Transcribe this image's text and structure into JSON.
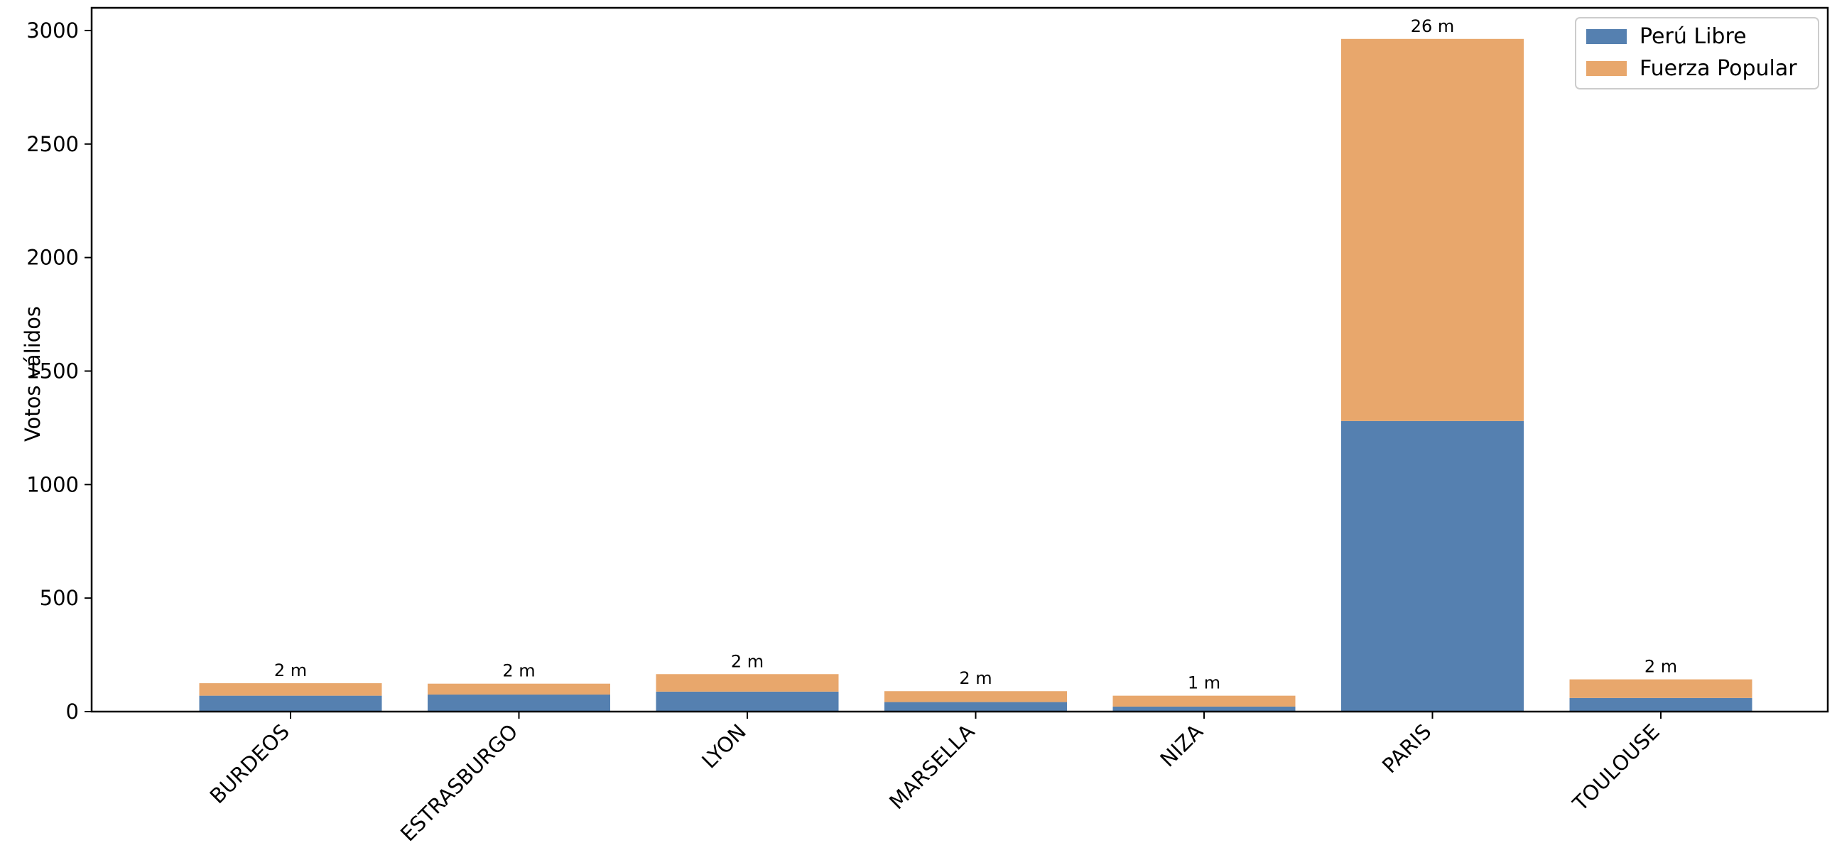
{
  "chart_data": {
    "type": "bar",
    "stacked": true,
    "title": "",
    "xlabel": "",
    "ylabel": "Votos válidos",
    "ylim": [
      0,
      3100
    ],
    "yticks": [
      0,
      500,
      1000,
      1500,
      2000,
      2500,
      3000
    ],
    "grid": false,
    "legend_position": "top-right",
    "categories": [
      "BURDEOS",
      "ESTRASBURGO",
      "LYON",
      "MARSELLA",
      "NIZA",
      "PARIS",
      "TOULOUSE"
    ],
    "series": [
      {
        "name": "Perú Libre",
        "color": "#5580b0",
        "values": [
          70,
          75,
          88,
          42,
          22,
          1280,
          60
        ]
      },
      {
        "name": "Fuerza Popular",
        "color": "#e8a76c",
        "values": [
          55,
          48,
          77,
          48,
          48,
          1683,
          82
        ]
      }
    ],
    "bar_labels": [
      "2 m",
      "2 m",
      "2 m",
      "2 m",
      "1 m",
      "26 m",
      "2 m"
    ]
  }
}
